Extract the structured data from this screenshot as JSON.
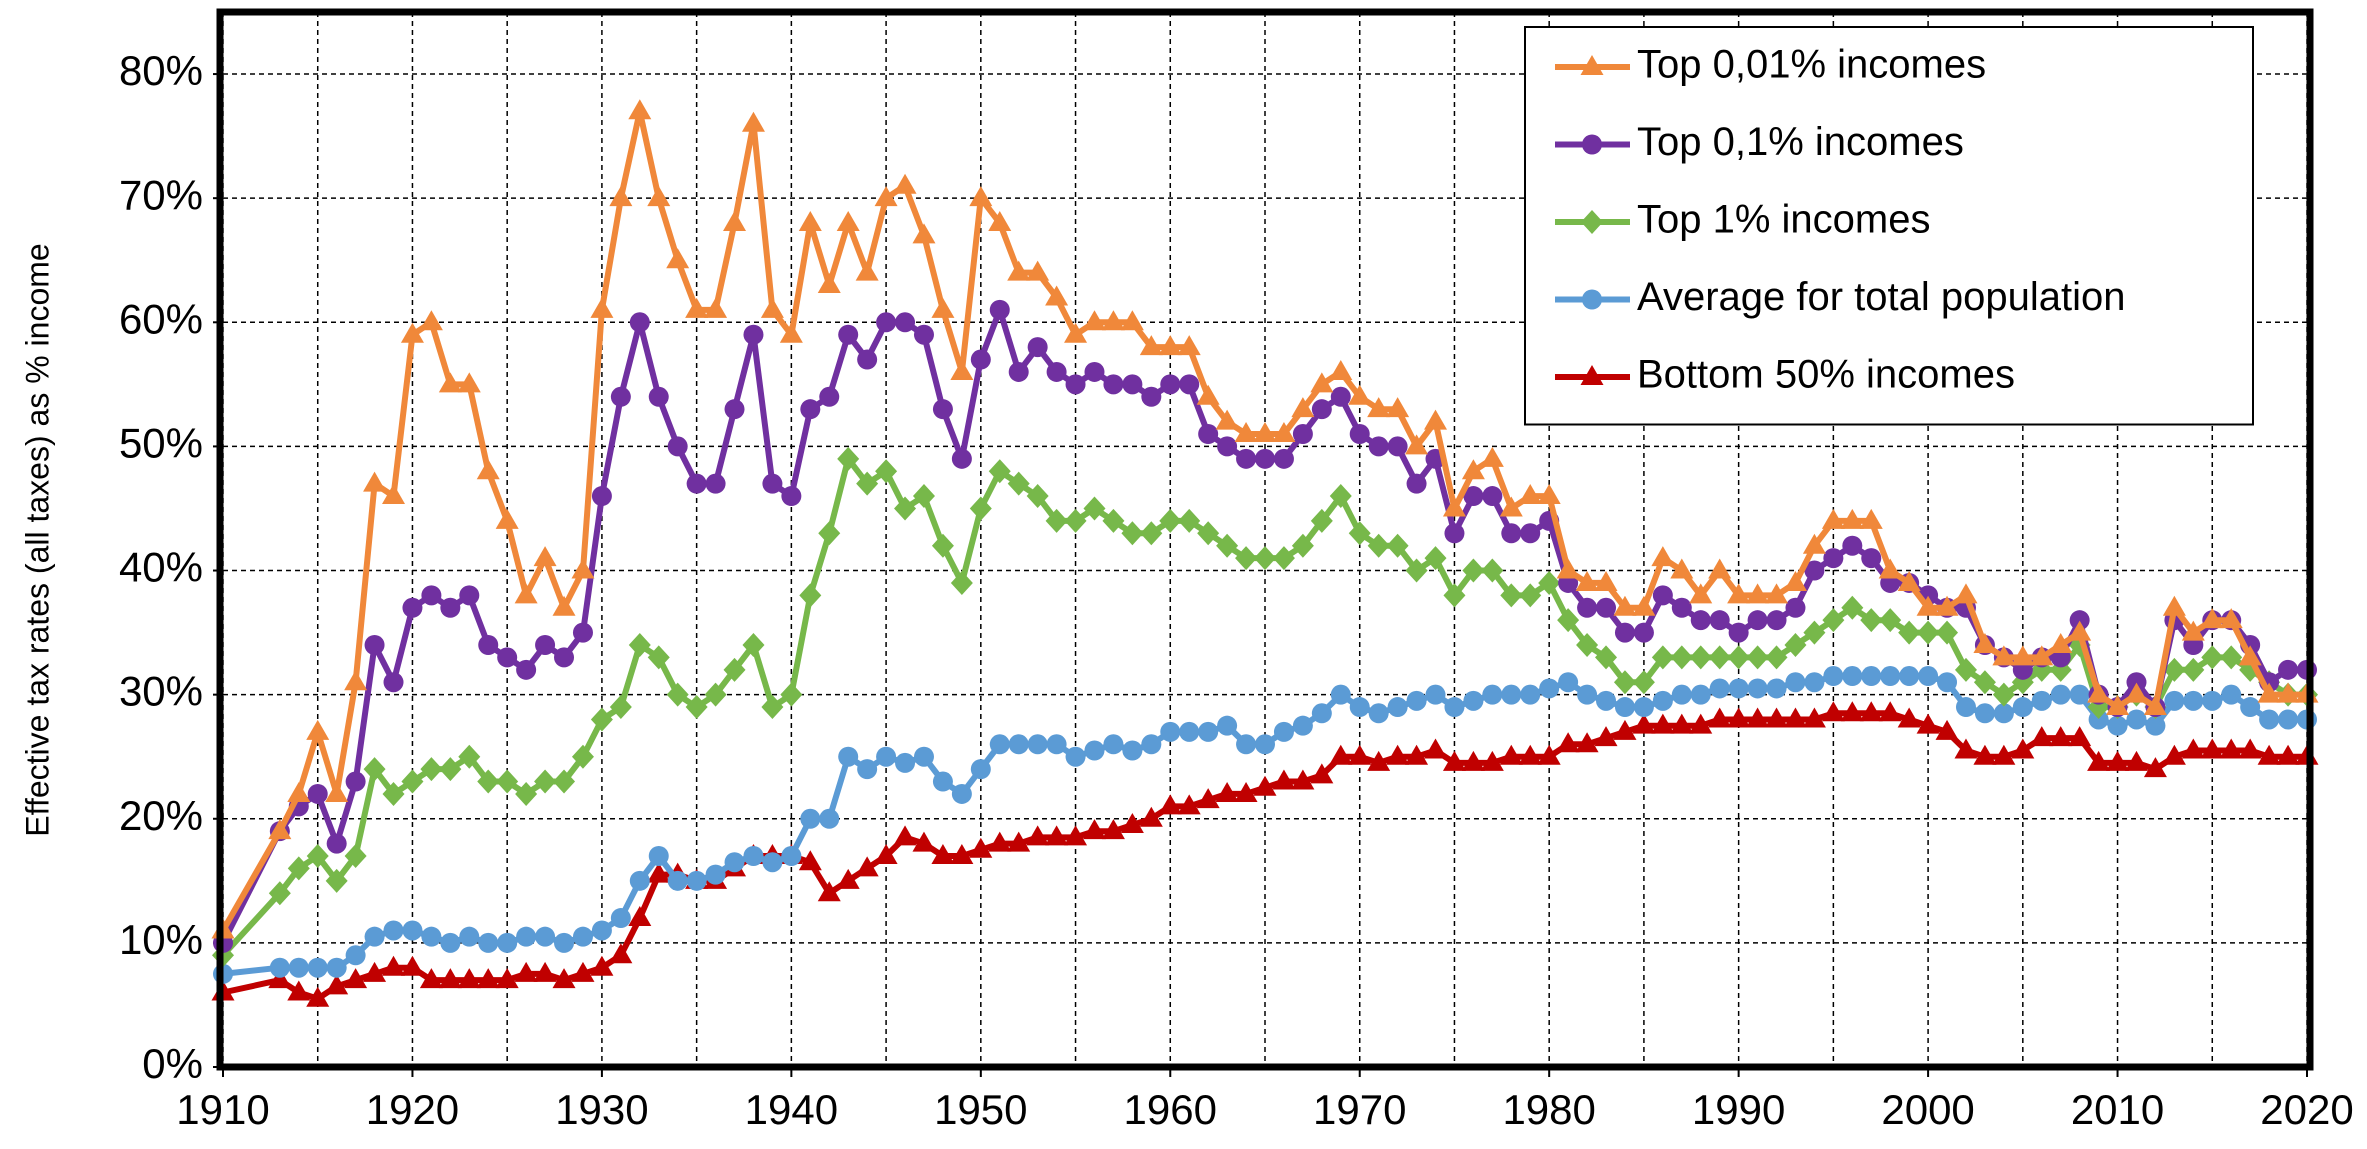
{
  "chart_data": {
    "type": "line",
    "y_label": "Effective tax rates (all taxes) as % income",
    "xlim": [
      1910,
      2020
    ],
    "xticks": [
      1910,
      1920,
      1930,
      1940,
      1950,
      1960,
      1970,
      1980,
      1990,
      2000,
      2010,
      2020
    ],
    "x_minor_ticks": [
      1915,
      1925,
      1935,
      1945,
      1955,
      1965,
      1975,
      1985,
      1995,
      2005,
      2015
    ],
    "ylim": [
      0,
      85
    ],
    "yticks": [
      {
        "value": 0,
        "label": "0%"
      },
      {
        "value": 10,
        "label": "10%"
      },
      {
        "value": 20,
        "label": "20%"
      },
      {
        "value": 30,
        "label": "30%"
      },
      {
        "value": 40,
        "label": "40%"
      },
      {
        "value": 50,
        "label": "50%"
      },
      {
        "value": 60,
        "label": "60%"
      },
      {
        "value": 70,
        "label": "70%"
      },
      {
        "value": 80,
        "label": "80%"
      }
    ],
    "grid": true,
    "legend_position": "upper right",
    "x": [
      1910,
      1913,
      1914,
      1915,
      1916,
      1917,
      1918,
      1919,
      1920,
      1921,
      1922,
      1923,
      1924,
      1925,
      1926,
      1927,
      1928,
      1929,
      1930,
      1931,
      1932,
      1933,
      1934,
      1935,
      1936,
      1937,
      1938,
      1939,
      1940,
      1941,
      1942,
      1943,
      1944,
      1945,
      1946,
      1947,
      1948,
      1949,
      1950,
      1951,
      1952,
      1953,
      1954,
      1955,
      1956,
      1957,
      1958,
      1959,
      1960,
      1961,
      1962,
      1963,
      1964,
      1965,
      1966,
      1967,
      1968,
      1969,
      1970,
      1971,
      1972,
      1973,
      1974,
      1975,
      1976,
      1977,
      1978,
      1979,
      1980,
      1981,
      1982,
      1983,
      1984,
      1985,
      1986,
      1987,
      1988,
      1989,
      1990,
      1991,
      1992,
      1993,
      1994,
      1995,
      1996,
      1997,
      1998,
      1999,
      2000,
      2001,
      2002,
      2003,
      2004,
      2005,
      2006,
      2007,
      2008,
      2009,
      2010,
      2011,
      2012,
      2013,
      2014,
      2015,
      2016,
      2017,
      2018,
      2019,
      2020
    ],
    "series": [
      {
        "name": "Top 0,01% incomes",
        "color": "#f0883a",
        "marker": "triangle",
        "values": [
          11,
          19,
          22,
          27,
          22,
          31,
          47,
          46,
          59,
          60,
          55,
          55,
          48,
          44,
          38,
          41,
          37,
          40,
          61,
          70,
          77,
          70,
          65,
          61,
          61,
          68,
          76,
          61,
          59,
          68,
          63,
          68,
          64,
          70,
          71,
          67,
          61,
          56,
          70,
          68,
          64,
          64,
          62,
          59,
          60,
          60,
          60,
          58,
          58,
          58,
          54,
          52,
          51,
          51,
          51,
          53,
          55,
          56,
          54,
          53,
          53,
          50,
          52,
          45,
          48,
          49,
          45,
          46,
          46,
          40,
          39,
          39,
          37,
          37,
          41,
          40,
          38,
          40,
          38,
          38,
          38,
          39,
          42,
          44,
          44,
          44,
          40,
          39,
          37,
          37,
          38,
          34,
          33,
          33,
          33,
          34,
          35,
          30,
          29,
          30,
          29,
          37,
          35,
          36,
          36,
          33,
          30,
          30,
          30
        ]
      },
      {
        "name": "Top 0,1% incomes",
        "color": "#7030a0",
        "marker": "circle",
        "values": [
          10,
          19,
          21,
          22,
          18,
          23,
          34,
          31,
          37,
          38,
          37,
          38,
          34,
          33,
          32,
          34,
          33,
          35,
          46,
          54,
          60,
          54,
          50,
          47,
          47,
          53,
          59,
          47,
          46,
          53,
          54,
          59,
          57,
          60,
          60,
          59,
          53,
          49,
          57,
          61,
          56,
          58,
          56,
          55,
          56,
          55,
          55,
          54,
          55,
          55,
          51,
          50,
          49,
          49,
          49,
          51,
          53,
          54,
          51,
          50,
          50,
          47,
          49,
          43,
          46,
          46,
          43,
          43,
          44,
          39,
          37,
          37,
          35,
          35,
          38,
          37,
          36,
          36,
          35,
          36,
          36,
          37,
          40,
          41,
          42,
          41,
          39,
          39,
          38,
          37,
          37,
          34,
          33,
          32,
          33,
          33,
          36,
          30,
          29,
          31,
          29,
          36,
          34,
          36,
          36,
          34,
          31,
          32,
          32
        ]
      },
      {
        "name": "Top 1% incomes",
        "color": "#77b84a",
        "marker": "diamond",
        "values": [
          9,
          14,
          16,
          17,
          15,
          17,
          24,
          22,
          23,
          24,
          24,
          25,
          23,
          23,
          22,
          23,
          23,
          25,
          28,
          29,
          34,
          33,
          30,
          29,
          30,
          32,
          34,
          29,
          30,
          38,
          43,
          49,
          47,
          48,
          45,
          46,
          42,
          39,
          45,
          48,
          47,
          46,
          44,
          44,
          45,
          44,
          43,
          43,
          44,
          44,
          43,
          42,
          41,
          41,
          41,
          42,
          44,
          46,
          43,
          42,
          42,
          40,
          41,
          38,
          40,
          40,
          38,
          38,
          39,
          36,
          34,
          33,
          31,
          31,
          33,
          33,
          33,
          33,
          33,
          33,
          33,
          34,
          35,
          36,
          37,
          36,
          36,
          35,
          35,
          35,
          32,
          31,
          30,
          31,
          32,
          32,
          34,
          29,
          29,
          30,
          29,
          32,
          32,
          33,
          33,
          32,
          31,
          30,
          30
        ]
      },
      {
        "name": "Average for total population",
        "color": "#5b9bd5",
        "marker": "circle",
        "values": [
          7.5,
          8,
          8,
          8,
          8,
          9,
          10.5,
          11,
          11,
          10.5,
          10,
          10.5,
          10,
          10,
          10.5,
          10.5,
          10,
          10.5,
          11,
          12,
          15,
          17,
          15,
          15,
          15.5,
          16.5,
          17,
          16.5,
          17,
          20,
          20,
          25,
          24,
          25,
          24.5,
          25,
          23,
          22,
          24,
          26,
          26,
          26,
          26,
          25,
          25.5,
          26,
          25.5,
          26,
          27,
          27,
          27,
          27.5,
          26,
          26,
          27,
          27.5,
          28.5,
          30,
          29,
          28.5,
          29,
          29.5,
          30,
          29,
          29.5,
          30,
          30,
          30,
          30.5,
          31,
          30,
          29.5,
          29,
          29,
          29.5,
          30,
          30,
          30.5,
          30.5,
          30.5,
          30.5,
          31,
          31,
          31.5,
          31.5,
          31.5,
          31.5,
          31.5,
          31.5,
          31,
          29,
          28.5,
          28.5,
          29,
          29.5,
          30,
          30,
          28,
          27.5,
          28,
          27.5,
          29.5,
          29.5,
          29.5,
          30,
          29,
          28,
          28,
          28
        ]
      },
      {
        "name": "Bottom 50% incomes",
        "color": "#c00000",
        "marker": "triangle",
        "values": [
          6,
          7,
          6,
          5.5,
          6.5,
          7,
          7.5,
          8,
          8,
          7,
          7,
          7,
          7,
          7,
          7.5,
          7.5,
          7,
          7.5,
          8,
          9,
          12,
          15.5,
          15.5,
          15,
          15,
          16,
          17,
          17,
          17,
          16.5,
          14,
          15,
          16,
          17,
          18.5,
          18,
          17,
          17,
          17.5,
          18,
          18,
          18.5,
          18.5,
          18.5,
          19,
          19,
          19.5,
          20,
          21,
          21,
          21.5,
          22,
          22,
          22.5,
          23,
          23,
          23.5,
          25,
          25,
          24.5,
          25,
          25,
          25.5,
          24.5,
          24.5,
          24.5,
          25,
          25,
          25,
          26,
          26,
          26.5,
          27,
          27.5,
          27.5,
          27.5,
          27.5,
          28,
          28,
          28,
          28,
          28,
          28,
          28.5,
          28.5,
          28.5,
          28.5,
          28,
          27.5,
          27,
          25.5,
          25,
          25,
          25.5,
          26.5,
          26.5,
          26.5,
          24.5,
          24.5,
          24.5,
          24,
          25,
          25.5,
          25.5,
          25.5,
          25.5,
          25,
          25,
          25
        ]
      }
    ]
  }
}
